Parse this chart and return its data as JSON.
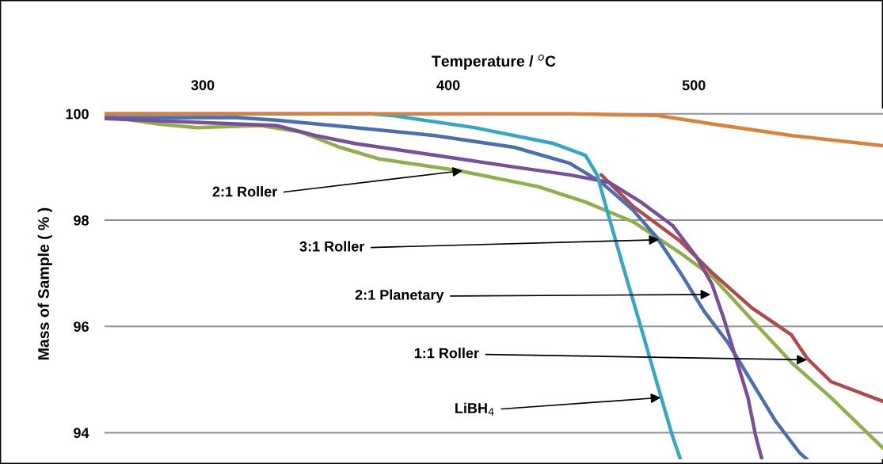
{
  "chart_data": {
    "type": "line",
    "xlabel": "Temperature / $^{o}$C",
    "ylabel": "Mass of Sample ( % )",
    "xlim": [
      260,
      577
    ],
    "ylim": [
      93.5,
      100.1
    ],
    "xticks": [
      300,
      400,
      500
    ],
    "yticks": [
      94,
      96,
      98,
      100
    ],
    "grid": "y",
    "legend": false,
    "marker": "none",
    "line_style": "solid",
    "series": [
      {
        "color": "#d9823b",
        "x": [
          260,
          330,
          400,
          450,
          485,
          507.4,
          540,
          577
        ],
        "values": [
          100.0,
          100.0,
          100.0,
          100.0,
          99.97,
          99.81,
          99.59,
          99.4
        ]
      },
      {
        "color": "#8db04a",
        "x": [
          260,
          281.6,
          297.7,
          323.5,
          339.7,
          355.8,
          372,
          404.2,
          436.5,
          455.8,
          475.2,
          494.5,
          507.4,
          523.5,
          539.7,
          555.8,
          577
        ],
        "values": [
          99.96,
          99.81,
          99.74,
          99.78,
          99.66,
          99.37,
          99.15,
          98.93,
          98.63,
          98.34,
          97.97,
          97.38,
          96.94,
          96.13,
          95.32,
          94.66,
          93.71
        ]
      },
      {
        "color": "#b04a48",
        "x": [
          462.3,
          475.2,
          494.5,
          507.4,
          523.5,
          539.7,
          546.1,
          555.8,
          577
        ],
        "values": [
          98.85,
          98.26,
          97.6,
          97.01,
          96.35,
          95.84,
          95.4,
          94.96,
          94.59
        ]
      },
      {
        "color": "#4a6fb0",
        "x": [
          260,
          313.9,
          330,
          362.3,
          394.5,
          426.8,
          449.4,
          462.3,
          475.2,
          484.8,
          494.5,
          504.2,
          513.9,
          523.5,
          533.2,
          542.9,
          546
        ],
        "values": [
          99.93,
          99.93,
          99.88,
          99.74,
          99.59,
          99.37,
          99.07,
          98.71,
          98.19,
          97.68,
          97.01,
          96.28,
          95.69,
          94.96,
          94.22,
          93.63,
          93.5
        ]
      },
      {
        "color": "#7a4f9a",
        "x": [
          260,
          297.7,
          330,
          346,
          362,
          394.5,
          426.8,
          449.4,
          465.5,
          478.4,
          491.3,
          501,
          507.4,
          512.3,
          517.1,
          522,
          525.2,
          527.7
        ],
        "values": [
          99.91,
          99.84,
          99.78,
          99.59,
          99.44,
          99.22,
          99.0,
          98.85,
          98.71,
          98.34,
          97.9,
          97.31,
          96.79,
          96.13,
          95.4,
          94.66,
          93.93,
          93.5
        ]
      },
      {
        "color": "#35a6c4",
        "x": [
          260,
          368.7,
          378.4,
          410.6,
          442.9,
          455.8,
          460.6,
          465.5,
          471.9,
          478.4,
          484.8,
          491.3,
          494.5
        ],
        "values": [
          100.0,
          100.0,
          99.96,
          99.74,
          99.44,
          99.22,
          98.85,
          98.04,
          97.01,
          95.99,
          94.96,
          93.93,
          93.5
        ]
      }
    ],
    "annotations": [
      {
        "text": "2:1 Roller",
        "x": 405.8,
        "y": 98.93
      },
      {
        "text": "3:1 Roller",
        "x": 485.8,
        "y": 97.63
      },
      {
        "text": "2:1 Planetary",
        "x": 506.8,
        "y": 96.6
      },
      {
        "text": "1:1 Roller",
        "x": 546,
        "y": 95.37
      },
      {
        "text": "LiBH$_{4}$",
        "x": 486.5,
        "y": 94.66
      }
    ]
  }
}
